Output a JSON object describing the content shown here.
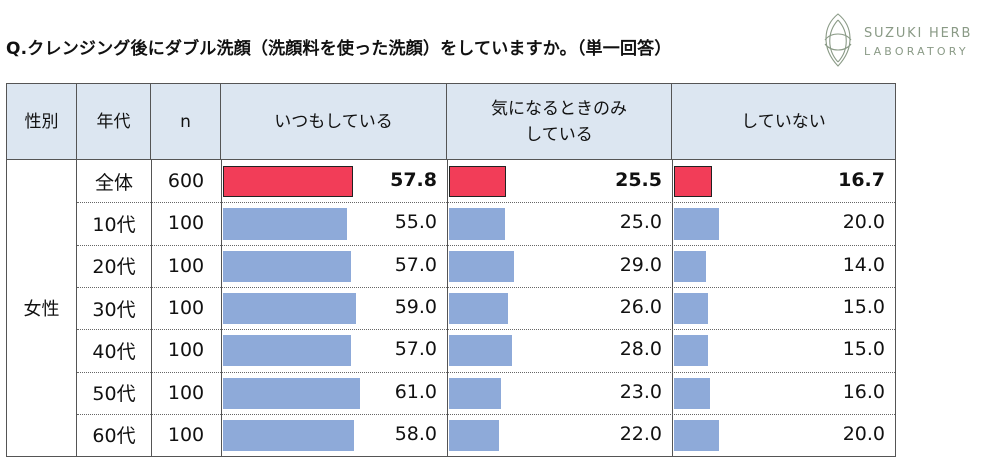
{
  "question": "Q.クレンジング後にダブル洗顔（洗顔料を使った洗顔）をしていますか。（単一回答）",
  "logo": {
    "line1": "SUZUKI HERB",
    "line2": "LABORATORY",
    "color": "#8a9a86"
  },
  "table": {
    "headers": {
      "gender": "性別",
      "age": "年代",
      "n": "n",
      "col1": "いつもしている",
      "col2_line1": "気になるときのみ",
      "col2_line2": "している",
      "col3": "していない"
    },
    "gender_label": "女性"
  },
  "colors": {
    "header_bg": "#dce6f1",
    "total_bar": "#f23d58",
    "age_bar": "#8eaad9"
  },
  "chart_data": {
    "type": "table",
    "scale_max": 100,
    "columns": [
      "いつもしている",
      "気になるときのみしている",
      "していない"
    ],
    "rows": [
      {
        "age": "全体",
        "n": "600",
        "values": [
          "57.8",
          "25.5",
          "16.7"
        ],
        "highlight": true
      },
      {
        "age": "10代",
        "n": "100",
        "values": [
          "55.0",
          "25.0",
          "20.0"
        ]
      },
      {
        "age": "20代",
        "n": "100",
        "values": [
          "57.0",
          "29.0",
          "14.0"
        ]
      },
      {
        "age": "30代",
        "n": "100",
        "values": [
          "59.0",
          "26.0",
          "15.0"
        ]
      },
      {
        "age": "40代",
        "n": "100",
        "values": [
          "57.0",
          "28.0",
          "15.0"
        ]
      },
      {
        "age": "50代",
        "n": "100",
        "values": [
          "61.0",
          "23.0",
          "16.0"
        ]
      },
      {
        "age": "60代",
        "n": "100",
        "values": [
          "58.0",
          "22.0",
          "20.0"
        ]
      }
    ]
  }
}
